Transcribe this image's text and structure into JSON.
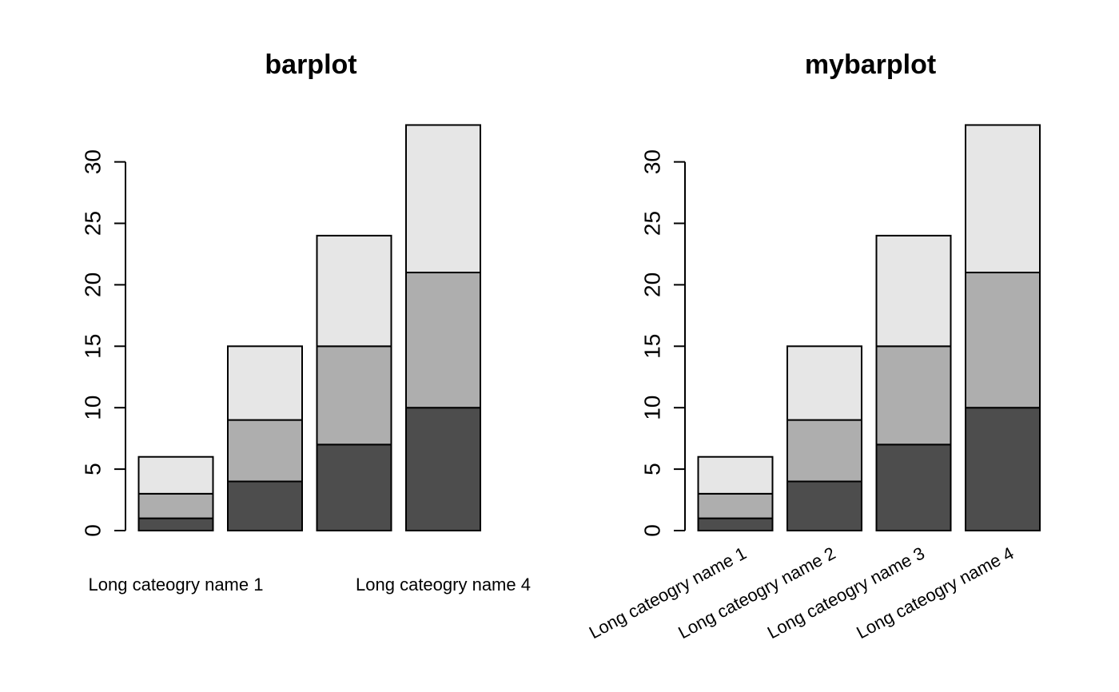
{
  "chart_data": [
    {
      "type": "bar",
      "stacked": true,
      "title": "barplot",
      "xlabel": "",
      "ylabel": "",
      "categories": [
        "Long cateogry name 1",
        "Long cateogry name 2",
        "Long cateogry name 3",
        "Long cateogry name 4"
      ],
      "visible_category_labels": [
        "Long cateogry name 1",
        "",
        "",
        "Long cateogry name 4"
      ],
      "category_label_style": "horizontal",
      "series": [
        {
          "values": [
            1,
            4,
            7,
            10
          ],
          "color": "#4d4d4d"
        },
        {
          "values": [
            2,
            5,
            8,
            11
          ],
          "color": "#aeaeae"
        },
        {
          "values": [
            3,
            6,
            9,
            12
          ],
          "color": "#e6e6e6"
        }
      ],
      "ylim": [
        0,
        33
      ],
      "yticks": [
        "0",
        "5",
        "10",
        "15",
        "20",
        "25",
        "30"
      ],
      "grid": false,
      "legend": "none"
    },
    {
      "type": "bar",
      "stacked": true,
      "title": "mybarplot",
      "xlabel": "",
      "ylabel": "",
      "categories": [
        "Long cateogry name 1",
        "Long cateogry name 2",
        "Long cateogry name 3",
        "Long cateogry name 4"
      ],
      "visible_category_labels": [
        "Long cateogry name 1",
        "Long cateogry name 2",
        "Long cateogry name 3",
        "Long cateogry name 4"
      ],
      "category_label_style": "rotated",
      "series": [
        {
          "values": [
            1,
            4,
            7,
            10
          ],
          "color": "#4d4d4d"
        },
        {
          "values": [
            2,
            5,
            8,
            11
          ],
          "color": "#aeaeae"
        },
        {
          "values": [
            3,
            6,
            9,
            12
          ],
          "color": "#e6e6e6"
        }
      ],
      "ylim": [
        0,
        33
      ],
      "yticks": [
        "0",
        "5",
        "10",
        "15",
        "20",
        "25",
        "30"
      ],
      "grid": false,
      "legend": "none"
    }
  ]
}
